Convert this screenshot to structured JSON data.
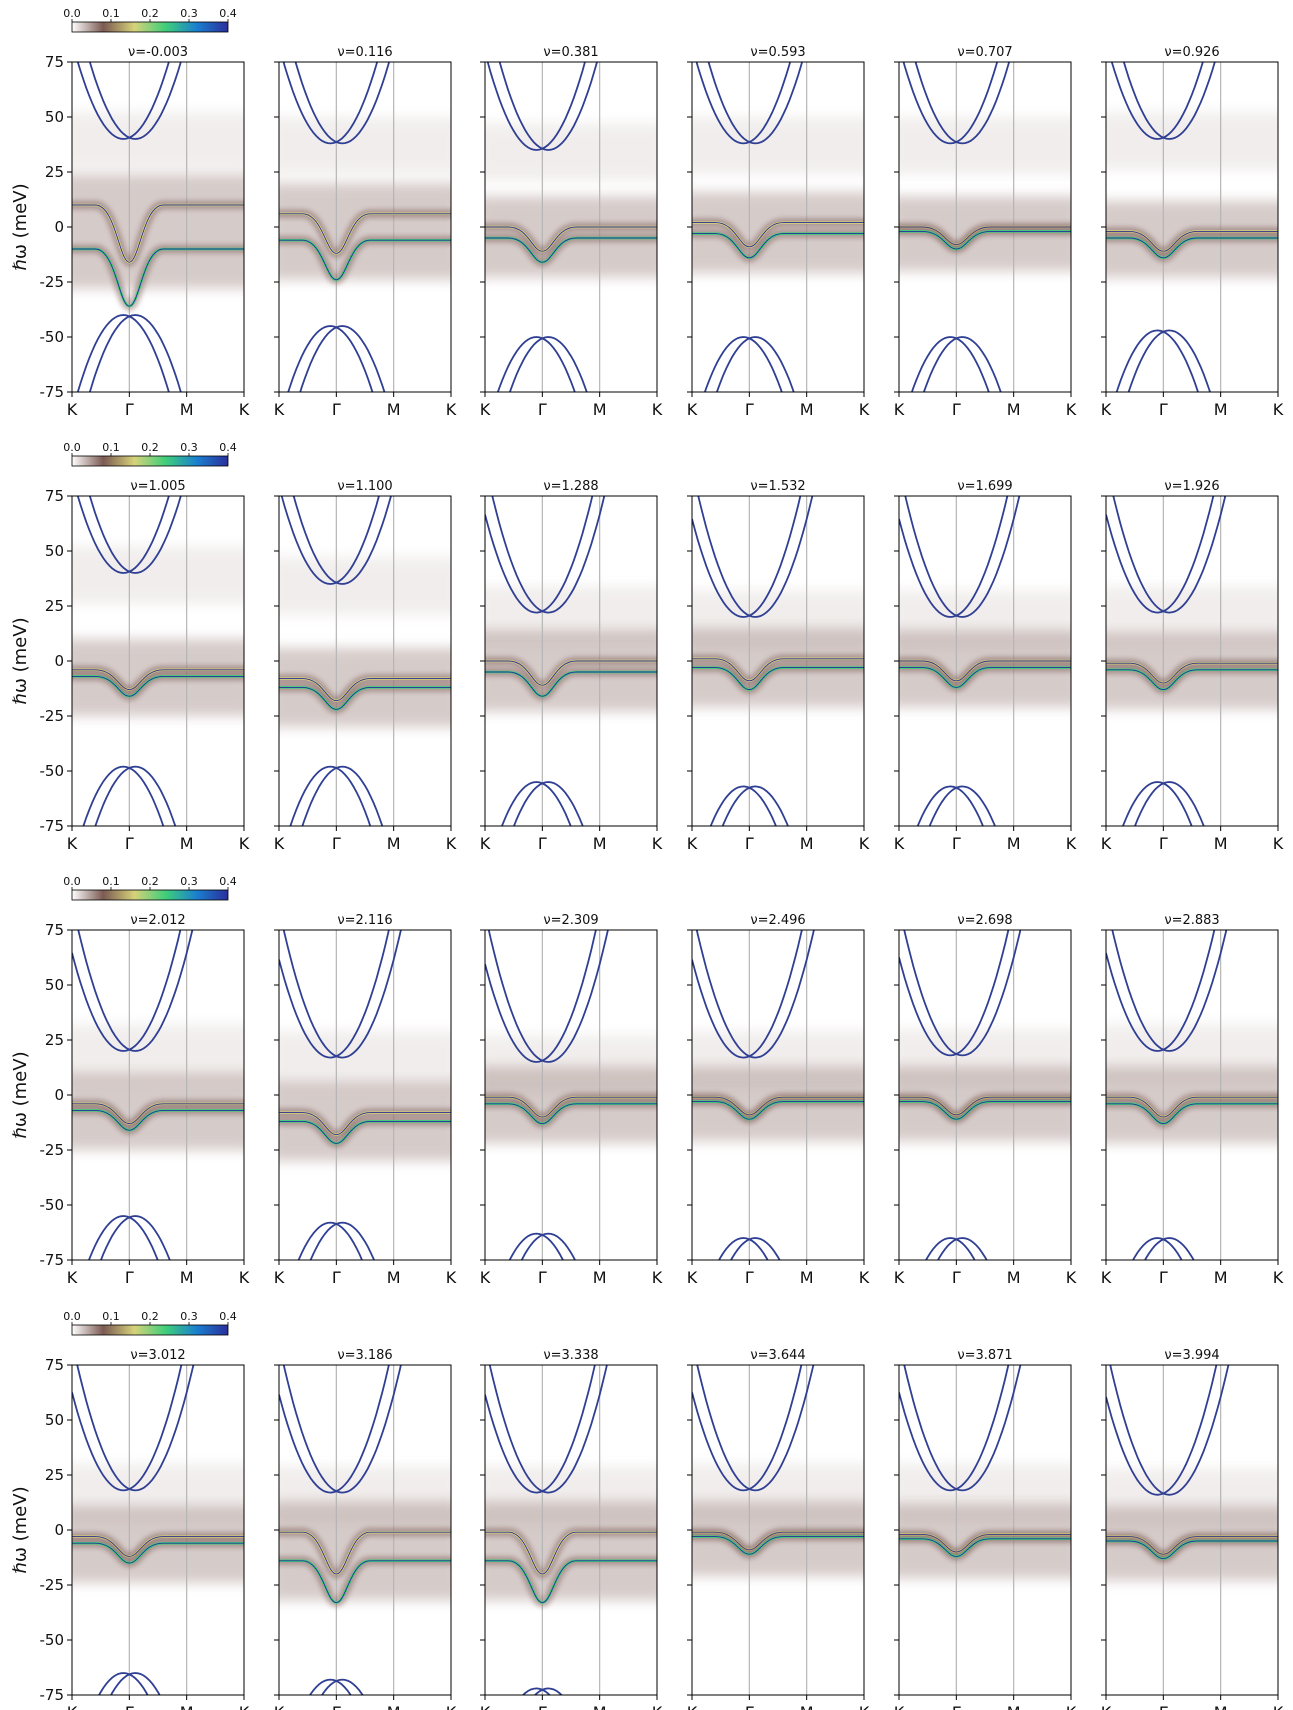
{
  "chart_data": {
    "type": "heatmap",
    "layout": {
      "rows": 4,
      "cols": 6
    },
    "ylabel": "ℏω (meV)",
    "ylim": [
      -75,
      75
    ],
    "yticks": [
      75,
      50,
      25,
      0,
      -25,
      -50,
      -75
    ],
    "ytick_labels": [
      "75",
      "50",
      "25",
      "0",
      "-25",
      "-50",
      "-75"
    ],
    "xticks": [
      "K",
      "Γ",
      "M",
      "K"
    ],
    "colorbar": {
      "ticks": [
        0.0,
        0.1,
        0.2,
        0.3,
        0.4
      ],
      "tick_labels": [
        "0.0",
        "0.1",
        "0.2",
        "0.3",
        "0.4"
      ],
      "colors": [
        "#ffffff",
        "#7b5a52",
        "#d6d27a",
        "#3fce7a",
        "#1a7fcf",
        "#2a2f9c"
      ]
    },
    "panels": [
      {
        "nu": "ν=-0.003",
        "flat": [
          10,
          -10
        ],
        "cond": 40,
        "val": -40
      },
      {
        "nu": "ν=0.116",
        "flat": [
          6,
          -6
        ],
        "cond": 38,
        "val": -45
      },
      {
        "nu": "ν=0.381",
        "flat": [
          0,
          -5
        ],
        "cond": 35,
        "val": -50
      },
      {
        "nu": "ν=0.593",
        "flat": [
          2,
          -3
        ],
        "cond": 38,
        "val": -50
      },
      {
        "nu": "ν=0.707",
        "flat": [
          0,
          -2
        ],
        "cond": 38,
        "val": -50
      },
      {
        "nu": "ν=0.926",
        "flat": [
          -2,
          -5
        ],
        "cond": 40,
        "val": -47
      },
      {
        "nu": "ν=1.005",
        "flat": [
          -4,
          -7
        ],
        "cond": 40,
        "val": -48
      },
      {
        "nu": "ν=1.100",
        "flat": [
          -8,
          -12
        ],
        "cond": 35,
        "val": -48
      },
      {
        "nu": "ν=1.288",
        "flat": [
          0,
          -5
        ],
        "cond": 22,
        "val": -55
      },
      {
        "nu": "ν=1.532",
        "flat": [
          1,
          -3
        ],
        "cond": 20,
        "val": -57
      },
      {
        "nu": "ν=1.699",
        "flat": [
          0,
          -3
        ],
        "cond": 20,
        "val": -57
      },
      {
        "nu": "ν=1.926",
        "flat": [
          -1,
          -4
        ],
        "cond": 22,
        "val": -55
      },
      {
        "nu": "ν=2.012",
        "flat": [
          -4,
          -7
        ],
        "cond": 20,
        "val": -55
      },
      {
        "nu": "ν=2.116",
        "flat": [
          -8,
          -12
        ],
        "cond": 17,
        "val": -58
      },
      {
        "nu": "ν=2.309",
        "flat": [
          -1,
          -4
        ],
        "cond": 15,
        "val": -63
      },
      {
        "nu": "ν=2.496",
        "flat": [
          -1,
          -3
        ],
        "cond": 17,
        "val": -65
      },
      {
        "nu": "ν=2.698",
        "flat": [
          -1,
          -3
        ],
        "cond": 18,
        "val": -65
      },
      {
        "nu": "ν=2.883",
        "flat": [
          -1,
          -4
        ],
        "cond": 20,
        "val": -65
      },
      {
        "nu": "ν=3.012",
        "flat": [
          -3,
          -6
        ],
        "cond": 18,
        "val": -65
      },
      {
        "nu": "ν=3.186",
        "flat": [
          -1,
          -14
        ],
        "cond": 17,
        "val": -68
      },
      {
        "nu": "ν=3.338",
        "flat": [
          -1,
          -14
        ],
        "cond": 17,
        "val": -72
      },
      {
        "nu": "ν=3.644",
        "flat": [
          -1,
          -3
        ],
        "cond": 18,
        "val": -76
      },
      {
        "nu": "ν=3.871",
        "flat": [
          -2,
          -4
        ],
        "cond": 18,
        "val": -76
      },
      {
        "nu": "ν=3.994",
        "flat": [
          -3,
          -5
        ],
        "cond": 16,
        "val": -78
      }
    ]
  }
}
